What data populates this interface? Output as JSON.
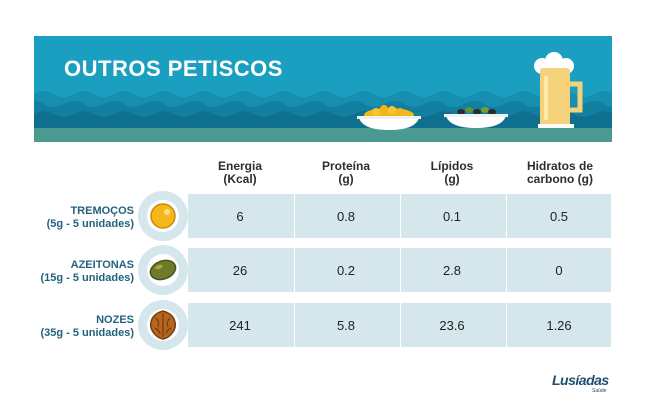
{
  "banner": {
    "title": "OUTROS PETISCOS"
  },
  "columns": [
    {
      "line1": "Energia",
      "line2": "(Kcal)"
    },
    {
      "line1": "Proteína",
      "line2": "(g)"
    },
    {
      "line1": "Lípidos",
      "line2": "(g)"
    },
    {
      "line1": "Hidratos de",
      "line2": "carbono (g)"
    }
  ],
  "rows": [
    {
      "name": "TREMOÇOS",
      "portion": "(5g - 5 unidades)",
      "icon": "lupini-bean-icon",
      "values": [
        "6",
        "0.8",
        "0.1",
        "0.5"
      ]
    },
    {
      "name": "AZEITONAS",
      "portion": "(15g - 5 unidades)",
      "icon": "olive-icon",
      "values": [
        "26",
        "0.2",
        "2.8",
        "0"
      ]
    },
    {
      "name": "NOZES",
      "portion": "(35g - 5 unidades)",
      "icon": "walnut-icon",
      "values": [
        "241",
        "5.8",
        "23.6",
        "1.26"
      ]
    }
  ],
  "logo": {
    "name": "Lusíadas",
    "sub": "Saúde"
  },
  "colors": {
    "banner": "#1b9fc1",
    "row_band": "#d5e7ec",
    "label": "#23627e"
  }
}
